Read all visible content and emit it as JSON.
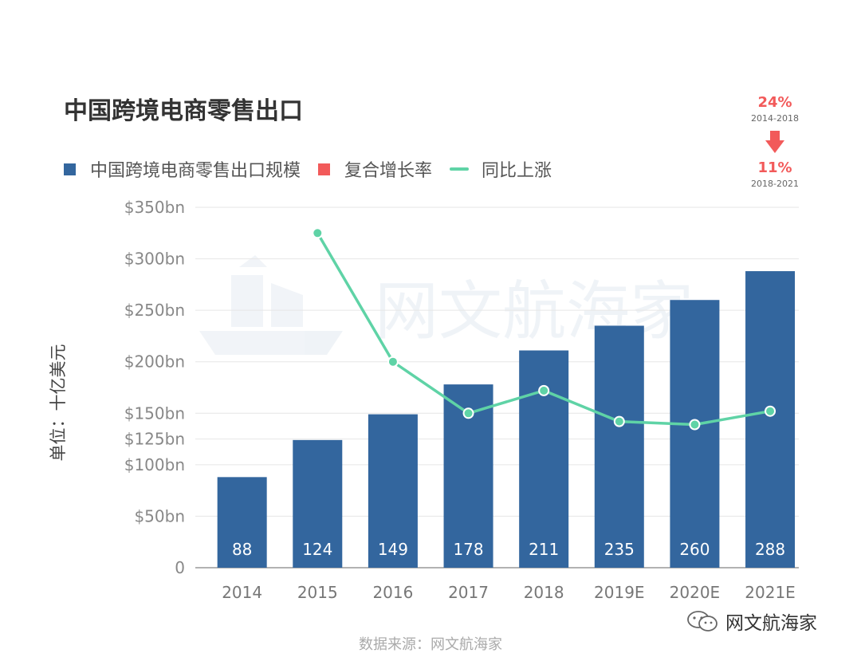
{
  "title": "中国跨境电商零售出口",
  "legend": {
    "bar": "中国跨境电商零售出口规模",
    "cagr": "复合增长率",
    "line": "同比上涨"
  },
  "cagr_box": {
    "first": {
      "value": "24%",
      "period": "2014-2018"
    },
    "second": {
      "value": "11%",
      "period": "2018-2021"
    }
  },
  "y_axis_label": "单位：十亿美元",
  "source": "数据来源：网文航海家",
  "brand": "网文航海家",
  "watermark": "网文航海家",
  "colors": {
    "bar": "#33669e",
    "line": "#5fd3a6",
    "cagr": "#f25a5a",
    "text": "#333333"
  },
  "chart_data": {
    "type": "bar",
    "title": "中国跨境电商零售出口",
    "ylabel": "单位：十亿美元",
    "categories": [
      "2014",
      "2015",
      "2016",
      "2017",
      "2018",
      "2019E",
      "2020E",
      "2021E"
    ],
    "y_tick_labels": [
      "0",
      "$50bn",
      "$100bn",
      "$125bn",
      "$150bn",
      "$200bn",
      "$250bn",
      "$300bn",
      "$350bn"
    ],
    "series": [
      {
        "name": "中国跨境电商零售出口规模",
        "type": "bar",
        "values": [
          88,
          124,
          149,
          178,
          211,
          235,
          260,
          288
        ],
        "labels": [
          "88",
          "124",
          "149",
          "178",
          "211",
          "235",
          "260",
          "288"
        ]
      },
      {
        "name": "同比上涨",
        "type": "line",
        "values": [
          null,
          325,
          200,
          150,
          172,
          142,
          139,
          152
        ]
      }
    ],
    "ylim": [
      0,
      350
    ],
    "grid": true,
    "legend": "top-left"
  }
}
